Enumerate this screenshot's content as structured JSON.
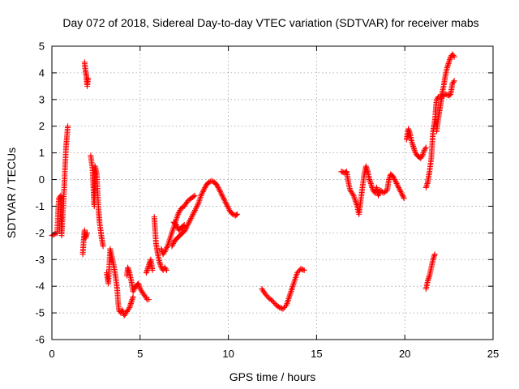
{
  "chart_data": {
    "type": "scatter",
    "title": "Day 072 of 2018, Sidereal Day-to-day VTEC variation (SDTVAR) for receiver mabs",
    "xlabel": "GPS time / hours",
    "ylabel": "SDTVAR / TECUs",
    "xlim": [
      0,
      25
    ],
    "ylim": [
      -6,
      5
    ],
    "xticks": [
      0,
      5,
      10,
      15,
      20,
      25
    ],
    "yticks": [
      -6,
      -5,
      -4,
      -3,
      -2,
      -1,
      0,
      1,
      2,
      3,
      4,
      5
    ],
    "grid": true,
    "marker": "plus",
    "color": "#ff0000",
    "series": [
      {
        "name": "SDTVAR",
        "segments": [
          [
            [
              0.0,
              -2.1
            ],
            [
              0.3,
              -2.0
            ],
            [
              0.35,
              -1.2
            ],
            [
              0.4,
              -0.7
            ],
            [
              0.5,
              -0.6
            ],
            [
              0.55,
              -2.1
            ],
            [
              0.6,
              -1.5
            ],
            [
              0.65,
              -0.9
            ],
            [
              0.7,
              -0.3
            ],
            [
              0.75,
              0.5
            ],
            [
              0.8,
              1.2
            ],
            [
              0.85,
              1.6
            ],
            [
              0.9,
              2.0
            ]
          ],
          [
            [
              1.75,
              -2.8
            ],
            [
              1.8,
              -2.3
            ],
            [
              1.85,
              -1.9
            ],
            [
              1.9,
              -2.2
            ],
            [
              2.0,
              -2.0
            ]
          ],
          [
            [
              1.85,
              4.4
            ],
            [
              1.9,
              4.1
            ],
            [
              1.95,
              3.9
            ],
            [
              2.0,
              3.5
            ],
            [
              2.05,
              3.8
            ]
          ],
          [
            [
              2.2,
              0.9
            ],
            [
              2.3,
              0.4
            ],
            [
              2.35,
              -0.3
            ],
            [
              2.4,
              -1.0
            ],
            [
              2.45,
              0.5
            ],
            [
              2.55,
              0.2
            ],
            [
              2.6,
              -0.6
            ],
            [
              2.65,
              -1.2
            ],
            [
              2.7,
              -1.6
            ],
            [
              2.8,
              -2.1
            ],
            [
              2.9,
              -2.5
            ]
          ],
          [
            [
              3.1,
              -3.5
            ],
            [
              3.2,
              -3.9
            ],
            [
              3.3,
              -2.6
            ],
            [
              3.4,
              -2.9
            ],
            [
              3.5,
              -3.2
            ],
            [
              3.6,
              -3.6
            ],
            [
              3.7,
              -4.1
            ],
            [
              3.75,
              -4.6
            ],
            [
              3.8,
              -4.9
            ],
            [
              3.9,
              -5.0
            ],
            [
              4.0,
              -4.9
            ],
            [
              4.1,
              -5.1
            ],
            [
              4.2,
              -5.0
            ],
            [
              4.3,
              -4.9
            ],
            [
              4.4,
              -4.8
            ],
            [
              4.5,
              -4.6
            ],
            [
              4.6,
              -4.4
            ]
          ],
          [
            [
              4.25,
              -3.6
            ],
            [
              4.3,
              -3.3
            ],
            [
              4.4,
              -3.5
            ],
            [
              4.5,
              -3.8
            ],
            [
              4.6,
              -4.2
            ],
            [
              4.75,
              -4.0
            ],
            [
              4.9,
              -3.9
            ],
            [
              5.0,
              -4.1
            ],
            [
              5.1,
              -4.2
            ],
            [
              5.2,
              -4.3
            ],
            [
              5.3,
              -4.4
            ],
            [
              5.4,
              -4.5
            ],
            [
              5.5,
              -4.5
            ]
          ],
          [
            [
              5.35,
              -3.5
            ],
            [
              5.45,
              -3.3
            ],
            [
              5.55,
              -3.1
            ],
            [
              5.6,
              -3.0
            ],
            [
              5.7,
              -3.4
            ]
          ],
          [
            [
              5.8,
              -1.4
            ],
            [
              5.85,
              -1.9
            ],
            [
              5.9,
              -2.4
            ],
            [
              6.0,
              -2.8
            ],
            [
              6.1,
              -3.1
            ],
            [
              6.2,
              -3.3
            ],
            [
              6.3,
              -3.4
            ],
            [
              6.4,
              -3.3
            ],
            [
              6.5,
              -3.4
            ]
          ],
          [
            [
              6.2,
              -2.6
            ],
            [
              6.3,
              -2.8
            ],
            [
              6.4,
              -2.7
            ],
            [
              6.55,
              -2.5
            ],
            [
              6.7,
              -2.2
            ],
            [
              6.85,
              -1.9
            ],
            [
              7.0,
              -1.6
            ],
            [
              7.15,
              -1.3
            ],
            [
              7.3,
              -1.1
            ],
            [
              7.5,
              -1.0
            ],
            [
              7.7,
              -0.8
            ],
            [
              7.9,
              -0.7
            ],
            [
              8.1,
              -0.6
            ]
          ],
          [
            [
              6.8,
              -2.5
            ],
            [
              6.95,
              -2.3
            ],
            [
              7.1,
              -2.2
            ],
            [
              7.25,
              -2.1
            ],
            [
              7.4,
              -2.0
            ],
            [
              7.55,
              -1.9
            ],
            [
              7.7,
              -1.7
            ],
            [
              7.85,
              -1.5
            ],
            [
              8.0,
              -1.3
            ],
            [
              8.15,
              -1.1
            ],
            [
              8.3,
              -0.9
            ],
            [
              8.45,
              -0.6
            ],
            [
              8.6,
              -0.4
            ],
            [
              8.75,
              -0.2
            ],
            [
              8.9,
              -0.1
            ],
            [
              9.05,
              -0.05
            ],
            [
              9.2,
              -0.1
            ],
            [
              9.35,
              -0.2
            ],
            [
              9.5,
              -0.4
            ],
            [
              9.65,
              -0.6
            ],
            [
              9.8,
              -0.8
            ],
            [
              9.95,
              -1.0
            ],
            [
              10.1,
              -1.2
            ],
            [
              10.25,
              -1.3
            ],
            [
              10.4,
              -1.35
            ],
            [
              10.5,
              -1.3
            ]
          ],
          [
            [
              6.9,
              -1.6
            ],
            [
              7.05,
              -1.7
            ],
            [
              7.2,
              -1.9
            ],
            [
              7.35,
              -1.8
            ],
            [
              7.5,
              -1.7
            ]
          ],
          [
            [
              11.9,
              -4.1
            ],
            [
              12.1,
              -4.3
            ],
            [
              12.3,
              -4.45
            ],
            [
              12.5,
              -4.55
            ],
            [
              12.7,
              -4.7
            ],
            [
              12.9,
              -4.8
            ],
            [
              13.1,
              -4.85
            ],
            [
              13.3,
              -4.7
            ],
            [
              13.5,
              -4.3
            ],
            [
              13.7,
              -3.9
            ],
            [
              13.9,
              -3.5
            ],
            [
              14.1,
              -3.35
            ],
            [
              14.3,
              -3.4
            ]
          ],
          [
            [
              16.4,
              0.3
            ],
            [
              16.6,
              0.25
            ],
            [
              16.7,
              0.3
            ],
            [
              16.8,
              -0.1
            ],
            [
              16.9,
              -0.4
            ],
            [
              17.1,
              -0.6
            ],
            [
              17.3,
              -1.0
            ],
            [
              17.4,
              -1.3
            ],
            [
              17.5,
              -0.8
            ],
            [
              17.6,
              -0.3
            ],
            [
              17.7,
              0.2
            ],
            [
              17.8,
              0.5
            ],
            [
              17.9,
              0.3
            ],
            [
              18.0,
              0.0
            ],
            [
              18.1,
              -0.2
            ],
            [
              18.2,
              -0.4
            ],
            [
              18.3,
              -0.5
            ],
            [
              18.4,
              -0.3
            ],
            [
              18.5,
              -0.6
            ],
            [
              18.6,
              -0.4
            ],
            [
              18.8,
              -0.5
            ],
            [
              19.0,
              -0.4
            ],
            [
              19.1,
              0.0
            ],
            [
              19.2,
              0.2
            ],
            [
              19.35,
              0.1
            ],
            [
              19.5,
              -0.1
            ],
            [
              19.65,
              -0.3
            ],
            [
              19.8,
              -0.5
            ],
            [
              19.95,
              -0.7
            ]
          ],
          [
            [
              20.1,
              1.5
            ],
            [
              20.2,
              1.9
            ],
            [
              20.3,
              1.7
            ],
            [
              20.4,
              1.4
            ],
            [
              20.5,
              1.2
            ],
            [
              20.6,
              1.0
            ],
            [
              20.7,
              0.9
            ],
            [
              20.8,
              0.85
            ],
            [
              20.9,
              0.8
            ],
            [
              21.0,
              0.9
            ],
            [
              21.1,
              1.1
            ],
            [
              21.2,
              1.2
            ]
          ],
          [
            [
              21.2,
              -0.3
            ],
            [
              21.3,
              -0.1
            ],
            [
              21.4,
              0.3
            ],
            [
              21.5,
              0.8
            ],
            [
              21.55,
              1.3
            ],
            [
              21.6,
              1.8
            ],
            [
              21.7,
              2.2
            ],
            [
              21.75,
              2.6
            ],
            [
              21.8,
              3.0
            ],
            [
              21.9,
              3.1
            ],
            [
              22.0,
              3.1
            ],
            [
              22.1,
              3.2
            ],
            [
              22.2,
              3.5
            ],
            [
              22.3,
              3.9
            ],
            [
              22.4,
              4.2
            ],
            [
              22.5,
              4.4
            ],
            [
              22.6,
              4.6
            ],
            [
              22.7,
              4.7
            ],
            [
              22.8,
              4.6
            ]
          ],
          [
            [
              21.8,
              1.8
            ],
            [
              21.9,
              2.3
            ],
            [
              22.0,
              2.7
            ],
            [
              22.1,
              3.1
            ],
            [
              22.3,
              3.2
            ],
            [
              22.5,
              3.15
            ],
            [
              22.6,
              3.2
            ],
            [
              22.7,
              3.6
            ],
            [
              22.8,
              3.7
            ]
          ],
          [
            [
              21.2,
              -4.1
            ],
            [
              21.3,
              -3.8
            ],
            [
              21.4,
              -3.6
            ],
            [
              21.5,
              -3.3
            ],
            [
              21.6,
              -3.0
            ],
            [
              21.7,
              -2.8
            ]
          ]
        ]
      }
    ]
  }
}
